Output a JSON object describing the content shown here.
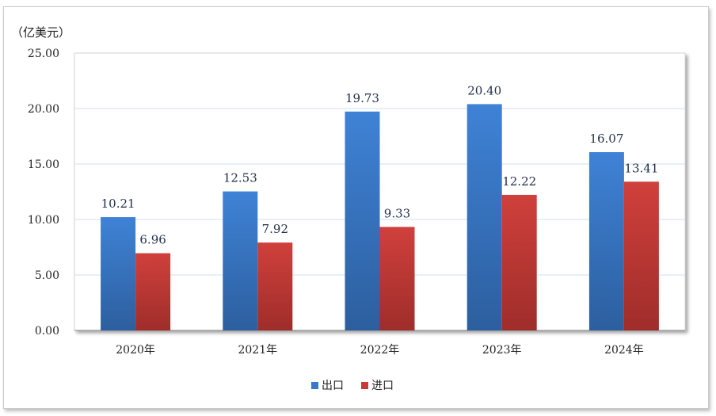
{
  "chart_data": {
    "type": "bar",
    "unit_label": "（亿美元）",
    "categories": [
      "2020年",
      "2021年",
      "2022年",
      "2023年",
      "2024年"
    ],
    "series": [
      {
        "name": "出口",
        "color": "#3a78c9",
        "values": [
          10.21,
          12.53,
          19.73,
          20.4,
          16.07
        ],
        "labels": [
          "10.21",
          "12.53",
          "19.73",
          "20.40",
          "16.07"
        ]
      },
      {
        "name": "进口",
        "color": "#c83a36",
        "values": [
          6.96,
          7.92,
          9.33,
          12.22,
          13.41
        ],
        "labels": [
          "6.96",
          "7.92",
          "9.33",
          "12.22",
          "13.41"
        ]
      }
    ],
    "ylim": [
      0,
      25
    ],
    "yticks": [
      "0.00",
      "5.00",
      "10.00",
      "15.00",
      "20.00",
      "25.00"
    ],
    "grid": true,
    "legend": "bottom-center"
  }
}
